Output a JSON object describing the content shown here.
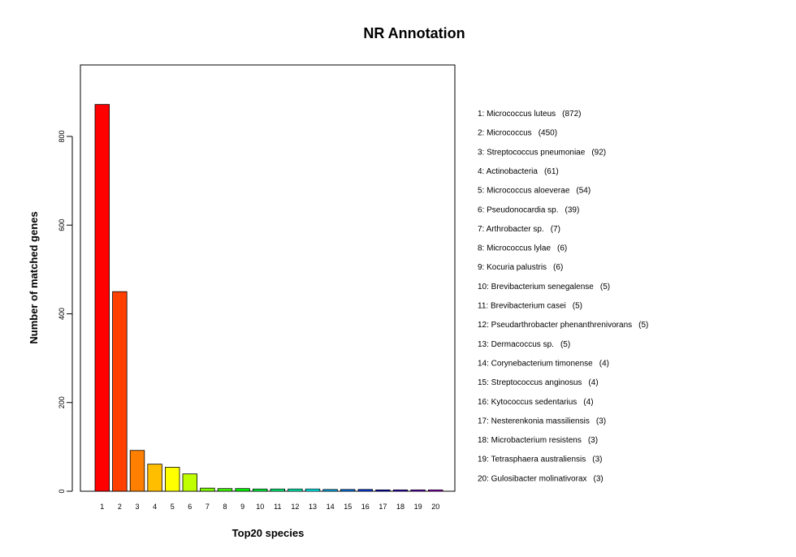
{
  "chart_data": {
    "type": "bar",
    "title": "NR Annotation",
    "xlabel": "Top20 species",
    "ylabel": "Number of matched genes",
    "categories": [
      "1",
      "2",
      "3",
      "4",
      "5",
      "6",
      "7",
      "8",
      "9",
      "10",
      "11",
      "12",
      "13",
      "14",
      "15",
      "16",
      "17",
      "18",
      "19",
      "20"
    ],
    "values": [
      872,
      450,
      92,
      61,
      54,
      39,
      7,
      6,
      6,
      5,
      5,
      5,
      5,
      4,
      4,
      4,
      3,
      3,
      3,
      3
    ],
    "colors": [
      "#FF0000",
      "#FF4000",
      "#FF8000",
      "#FFBF00",
      "#FFFF00",
      "#BFFF00",
      "#80FF00",
      "#40FF00",
      "#00FF00",
      "#00FF40",
      "#00FF80",
      "#00FFBF",
      "#00FFFF",
      "#00BFFF",
      "#0080FF",
      "#0040FF",
      "#0000FF",
      "#4000FF",
      "#8000FF",
      "#BF00FF"
    ],
    "ylim": [
      0,
      960
    ],
    "yticks": [
      0,
      200,
      400,
      600,
      800
    ],
    "grid": false,
    "legend_position": "right",
    "legend": [
      {
        "label": "1: Micrococcus luteus",
        "count": "(872)"
      },
      {
        "label": "2: Micrococcus",
        "count": "(450)"
      },
      {
        "label": "3: Streptococcus pneumoniae",
        "count": "(92)"
      },
      {
        "label": "4: Actinobacteria",
        "count": "(61)"
      },
      {
        "label": "5: Micrococcus aloeverae",
        "count": "(54)"
      },
      {
        "label": "6: Pseudonocardia sp.",
        "count": "(39)"
      },
      {
        "label": "7: Arthrobacter sp.",
        "count": "(7)"
      },
      {
        "label": "8: Micrococcus lylae",
        "count": "(6)"
      },
      {
        "label": "9: Kocuria palustris",
        "count": "(6)"
      },
      {
        "label": "10: Brevibacterium senegalense",
        "count": "(5)"
      },
      {
        "label": "11: Brevibacterium casei",
        "count": "(5)"
      },
      {
        "label": "12: Pseudarthrobacter phenanthrenivorans",
        "count": "(5)"
      },
      {
        "label": "13: Dermacoccus sp.",
        "count": "(5)"
      },
      {
        "label": "14: Corynebacterium timonense",
        "count": "(4)"
      },
      {
        "label": "15: Streptococcus anginosus",
        "count": "(4)"
      },
      {
        "label": "16: Kytococcus sedentarius",
        "count": "(4)"
      },
      {
        "label": "17: Nesterenkonia massiliensis",
        "count": "(3)"
      },
      {
        "label": "18: Microbacterium resistens",
        "count": "(3)"
      },
      {
        "label": "19: Tetrasphaera australiensis",
        "count": "(3)"
      },
      {
        "label": "20: Gulosibacter molinativorax",
        "count": "(3)"
      }
    ]
  }
}
